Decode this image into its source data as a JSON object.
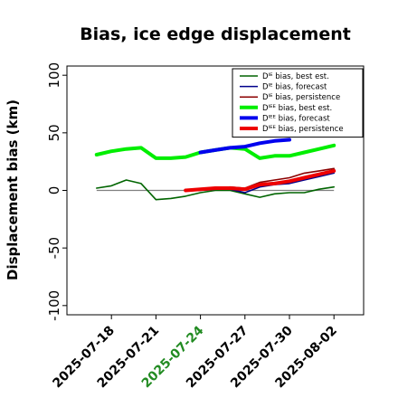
{
  "chart_data": {
    "type": "line",
    "title": "Bias, ice edge displacement",
    "ylabel": "Displacement bias (km)",
    "xlabel": "",
    "ylim": [
      -108,
      108
    ],
    "yticks": [
      -100,
      -50,
      0,
      50,
      100
    ],
    "xlim": [
      "2025-07-15",
      "2025-08-04"
    ],
    "xticks": [
      "2025-07-18",
      "2025-07-21",
      "2025-07-24",
      "2025-07-27",
      "2025-07-30",
      "2025-08-02"
    ],
    "highlight_tick": "2025-07-24",
    "highlight_color": "#228b22",
    "zero_line": true,
    "legend_position": "top-right",
    "series": [
      {
        "name": "Dᴵᴱ bias, best est.",
        "color": "#006400",
        "width": "thin",
        "x": [
          "2025-07-17",
          "2025-07-18",
          "2025-07-19",
          "2025-07-20",
          "2025-07-21",
          "2025-07-22",
          "2025-07-23",
          "2025-07-24",
          "2025-07-25",
          "2025-07-26",
          "2025-07-27",
          "2025-07-28",
          "2025-07-29",
          "2025-07-30",
          "2025-07-31",
          "2025-08-01",
          "2025-08-02"
        ],
        "values": [
          2,
          4,
          9,
          6,
          -8,
          -7,
          -5,
          -2,
          0,
          0,
          -3,
          -6,
          -3,
          -2,
          -2,
          1,
          3
        ]
      },
      {
        "name": "Dᴵᴱ bias, forecast",
        "color": "#00008b",
        "width": "thin",
        "x": [
          "2025-07-23",
          "2025-07-24",
          "2025-07-25",
          "2025-07-26",
          "2025-07-27",
          "2025-07-28",
          "2025-07-29",
          "2025-07-30",
          "2025-07-31",
          "2025-08-01",
          "2025-08-02"
        ],
        "values": [
          0,
          0,
          1,
          1,
          -2,
          3,
          5,
          6,
          9,
          12,
          15
        ]
      },
      {
        "name": "Dᴵᴱ bias, persistence",
        "color": "#8b0000",
        "width": "thin",
        "x": [
          "2025-07-23",
          "2025-07-24",
          "2025-07-25",
          "2025-07-26",
          "2025-07-27",
          "2025-07-28",
          "2025-07-29",
          "2025-07-30",
          "2025-07-31",
          "2025-08-01",
          "2025-08-02"
        ],
        "values": [
          0,
          1,
          2,
          3,
          2,
          7,
          9,
          11,
          15,
          17,
          19
        ]
      },
      {
        "name": "Dᴵᴱᴱ bias, best est.",
        "color": "#00ee00",
        "width": "thick",
        "x": [
          "2025-07-17",
          "2025-07-18",
          "2025-07-19",
          "2025-07-20",
          "2025-07-21",
          "2025-07-22",
          "2025-07-23",
          "2025-07-24",
          "2025-07-25",
          "2025-07-26",
          "2025-07-27",
          "2025-07-28",
          "2025-07-29",
          "2025-07-30",
          "2025-07-31",
          "2025-08-01",
          "2025-08-02"
        ],
        "values": [
          31,
          34,
          36,
          37,
          28,
          28,
          29,
          33,
          35,
          37,
          36,
          28,
          30,
          30,
          33,
          36,
          39
        ]
      },
      {
        "name": "Dᴵᴱᴱ bias, forecast",
        "color": "#0000ee",
        "width": "thick",
        "x": [
          "2025-07-24",
          "2025-07-25",
          "2025-07-26",
          "2025-07-27",
          "2025-07-28",
          "2025-07-29",
          "2025-07-30"
        ],
        "values": [
          33,
          35,
          37,
          38,
          41,
          43,
          44
        ]
      },
      {
        "name": "Dᴵᴱᴱ bias, persistence",
        "color": "#ee0000",
        "width": "thick",
        "x": [
          "2025-07-23",
          "2025-07-24",
          "2025-07-25",
          "2025-07-26",
          "2025-07-27",
          "2025-07-28",
          "2025-07-29",
          "2025-07-30",
          "2025-07-31",
          "2025-08-01",
          "2025-08-02"
        ],
        "values": [
          0,
          1,
          2,
          2,
          1,
          5,
          6,
          8,
          11,
          14,
          17
        ]
      }
    ]
  }
}
